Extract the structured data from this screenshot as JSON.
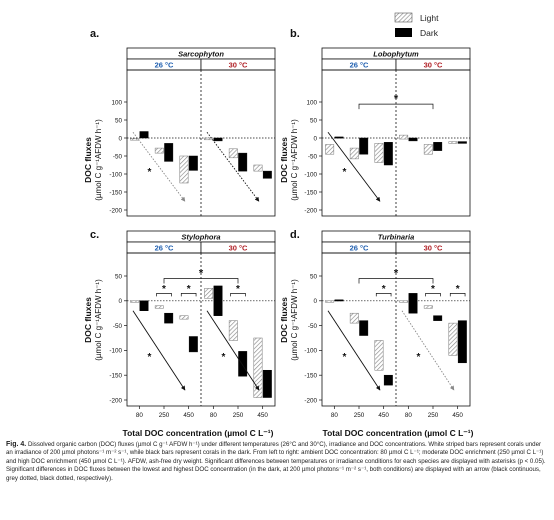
{
  "legend": {
    "light": "Light",
    "dark": "Dark"
  },
  "y_axis_label": {
    "line1": "DOC fluxes",
    "line2": "(µmol C g⁻¹AFDW h⁻¹)"
  },
  "x_axis_label": "Total DOC concentration (µmol C L⁻¹)",
  "temps": {
    "t26": "26 °C",
    "t30": "30 °C"
  },
  "colors": {
    "t26": "#1f5fb0",
    "t30": "#b01f25",
    "dark": "#000000"
  },
  "caption": {
    "label": "Fig. 4.",
    "text": "Dissolved organic carbon (DOC) fluxes (µmol C g⁻¹ AFDW h⁻¹) under different temperatures (26°C and 30°C), irradiance and DOC concentrations. White striped bars represent corals under an irradiance of 200 µmol photons⁻¹ m⁻² s⁻¹, while black bars represent corals in the dark. From left to right: ambient DOC concentration: 80 µmol C L⁻¹; moderate DOC enrichment (250 µmol C L⁻¹) and high DOC enrichment (450 µmol C L⁻¹). AFDW, ash-free dry weight. Significant differences between temperatures or irradiance conditions for each species are displayed with asterisks (p < 0.05). Significant differences in DOC fluxes between the lowest and highest DOC concentration (in the dark, at 200 µmol photons⁻¹ m⁻² s⁻¹, both conditions) are displayed with an arrow (black continuous, grey dotted, black dotted, respectively)."
  },
  "chart_data": [
    {
      "type": "bar",
      "panel": "a.",
      "title": "Sarcophyton",
      "ylim": [
        -200,
        100
      ],
      "yticks": [
        100,
        50,
        0,
        -50,
        -100,
        -150,
        -200
      ],
      "categories": [
        "80",
        "250",
        "450"
      ],
      "groups": [
        {
          "temp": "26 °C",
          "series": [
            {
              "name": "Light",
              "bars": [
                [
                  -6,
                  -2
                ],
                [
                  -42,
                  -28
                ],
                [
                  -125,
                  -50
                ]
              ]
            },
            {
              "name": "Dark",
              "bars": [
                [
                  0,
                  18
                ],
                [
                  -65,
                  -15
                ],
                [
                  -90,
                  -50
                ]
              ]
            }
          ]
        },
        {
          "temp": "30 °C",
          "series": [
            {
              "name": "Light",
              "bars": [
                [
                  -5,
                  0
                ],
                [
                  -55,
                  -30
                ],
                [
                  -92,
                  -75
                ]
              ]
            },
            {
              "name": "Dark",
              "bars": [
                [
                  -8,
                  0
                ],
                [
                  -92,
                  -42
                ],
                [
                  -112,
                  -92
                ]
              ]
            }
          ]
        }
      ],
      "annotations": [
        {
          "text": "*",
          "arrow": "26 °C",
          "style": "grey-dotted"
        },
        {
          "text": "",
          "arrow": "30 °C",
          "style": "black-dotted"
        }
      ]
    },
    {
      "type": "bar",
      "panel": "b.",
      "title": "Lobophytum",
      "ylim": [
        -200,
        100
      ],
      "yticks": [
        100,
        50,
        0,
        -50,
        -100,
        -150,
        -200
      ],
      "categories": [
        "80",
        "250",
        "450"
      ],
      "groups": [
        {
          "temp": "26 °C",
          "series": [
            {
              "name": "Light",
              "bars": [
                [
                  -45,
                  -18
                ],
                [
                  -58,
                  -28
                ],
                [
                  -68,
                  -15
                ]
              ]
            },
            {
              "name": "Dark",
              "bars": [
                [
                  0,
                  3
                ],
                [
                  -45,
                  0
                ],
                [
                  -75,
                  -12
                ]
              ]
            }
          ]
        },
        {
          "temp": "30 °C",
          "series": [
            {
              "name": "Light",
              "bars": [
                [
                  -3,
                  8
                ],
                [
                  -45,
                  -18
                ],
                [
                  -15,
                  -10
                ]
              ]
            },
            {
              "name": "Dark",
              "bars": [
                [
                  -8,
                  0
                ],
                [
                  -35,
                  -12
                ],
                [
                  -15,
                  -10
                ]
              ]
            }
          ]
        }
      ],
      "annotations": [
        {
          "text": "*",
          "between": "450 26 °C vs 450 30 °C"
        },
        {
          "text": "*",
          "arrow": "26 °C",
          "style": "black-continuous"
        }
      ]
    },
    {
      "type": "bar",
      "panel": "c.",
      "title": "Stylophora",
      "ylim": [
        -200,
        50
      ],
      "yticks": [
        50,
        0,
        -50,
        -100,
        -150,
        -200
      ],
      "categories": [
        "80",
        "250",
        "450"
      ],
      "groups": [
        {
          "temp": "26 °C",
          "series": [
            {
              "name": "Light",
              "bars": [
                [
                  -3,
                  0
                ],
                [
                  -15,
                  -10
                ],
                [
                  -37,
                  -30
                ]
              ]
            },
            {
              "name": "Dark",
              "bars": [
                [
                  -20,
                  0
                ],
                [
                  -45,
                  -25
                ],
                [
                  -103,
                  -72
                ]
              ]
            }
          ]
        },
        {
          "temp": "30 °C",
          "series": [
            {
              "name": "Light",
              "bars": [
                [
                  5,
                  25
                ],
                [
                  -80,
                  -40
                ],
                [
                  -195,
                  -75
                ]
              ]
            },
            {
              "name": "Dark",
              "bars": [
                [
                  -30,
                  30
                ],
                [
                  -152,
                  -102
                ],
                [
                  -195,
                  -140
                ]
              ]
            }
          ]
        }
      ],
      "annotations": [
        {
          "text": "*",
          "between": "26 °C vs 30 °C"
        },
        {
          "text": "*",
          "between": "Light vs Dark, 250 (26 °C)"
        },
        {
          "text": "*",
          "between": "Light vs Dark, 450 (26 °C)"
        },
        {
          "text": "*",
          "between": "Light vs Dark, 250 (30 °C)"
        },
        {
          "text": "*",
          "arrow": "26 °C",
          "style": "black-continuous"
        },
        {
          "text": "*",
          "arrow": "30 °C",
          "style": "black-continuous"
        }
      ]
    },
    {
      "type": "bar",
      "panel": "d.",
      "title": "Turbinaria",
      "ylim": [
        -200,
        50
      ],
      "yticks": [
        50,
        0,
        -50,
        -100,
        -150,
        -200
      ],
      "categories": [
        "80",
        "250",
        "450"
      ],
      "groups": [
        {
          "temp": "26 °C",
          "series": [
            {
              "name": "Light",
              "bars": [
                [
                  -3,
                  0
                ],
                [
                  -45,
                  -25
                ],
                [
                  -140,
                  -80
                ]
              ]
            },
            {
              "name": "Dark",
              "bars": [
                [
                  0,
                  2
                ],
                [
                  -70,
                  -40
                ],
                [
                  -170,
                  -150
                ]
              ]
            }
          ]
        },
        {
          "temp": "30 °C",
          "series": [
            {
              "name": "Light",
              "bars": [
                [
                  -3,
                  0
                ],
                [
                  -15,
                  -10
                ],
                [
                  -110,
                  -45
                ]
              ]
            },
            {
              "name": "Dark",
              "bars": [
                [
                  -25,
                  15
                ],
                [
                  -40,
                  -30
                ],
                [
                  -125,
                  -40
                ]
              ]
            }
          ]
        }
      ],
      "annotations": [
        {
          "text": "*",
          "between": "26 °C vs 30 °C"
        },
        {
          "text": "*",
          "between": "Light vs Dark, 450 (26 °C)"
        },
        {
          "text": "*",
          "between": "Light vs Dark, 250 (30 °C)"
        },
        {
          "text": "*",
          "between": "Light vs Dark, 450 (30 °C)"
        },
        {
          "text": "*",
          "arrow": "26 °C",
          "style": "black-continuous"
        },
        {
          "text": "*",
          "arrow": "30 °C",
          "style": "grey-dotted"
        }
      ]
    }
  ]
}
